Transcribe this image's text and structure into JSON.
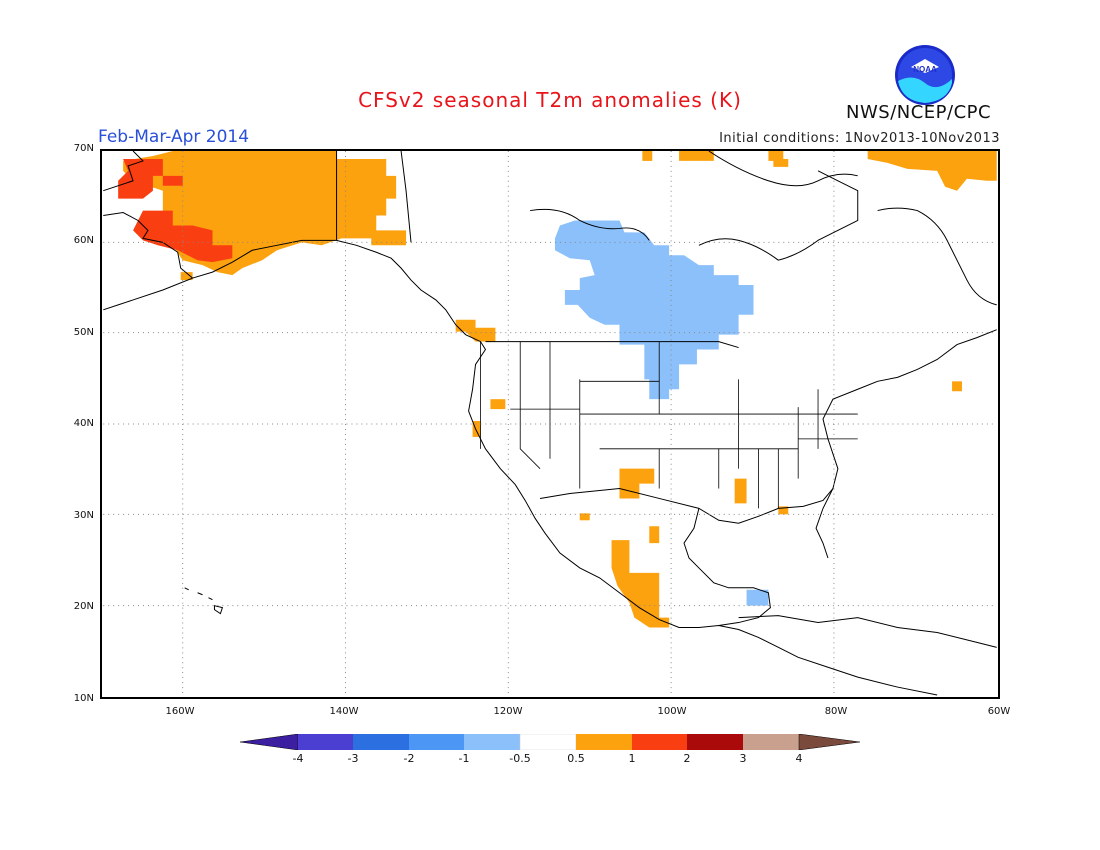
{
  "title": "CFSv2 seasonal T2m anomalies (K)",
  "period": "Feb-Mar-Apr 2014",
  "initial_conditions": "Initial conditions: 1Nov2013-10Nov2013",
  "agency": "NWS/NCEP/CPC",
  "logo": {
    "icon": "noaa-logo-icon",
    "text": "NOAA"
  },
  "map": {
    "lat_labels": [
      "70N",
      "60N",
      "50N",
      "40N",
      "30N",
      "20N",
      "10N"
    ],
    "lon_labels": [
      "160W",
      "140W",
      "120W",
      "100W",
      "80W",
      "60W"
    ],
    "lat_range": [
      10,
      70
    ],
    "lon_range": [
      -170,
      -60
    ],
    "grid": "dotted"
  },
  "colorbar": {
    "labels": [
      "-4",
      "-3",
      "-2",
      "-1",
      "-0.5",
      "0.5",
      "1",
      "2",
      "3",
      "4"
    ],
    "colors": [
      "#3c1ea0",
      "#4a3fd1",
      "#2b6fe0",
      "#4c97f5",
      "#8cc0fb",
      "#ffffff",
      "#fca20f",
      "#f93e12",
      "#aa0a0a",
      "#c9a08e",
      "#7a4a3c"
    ]
  },
  "anomaly_regions": [
    {
      "name": "Alaska warm",
      "category": "0.5 to 1",
      "color": "#fca20f"
    },
    {
      "name": "Western Alaska warm",
      "category": "1 to 2",
      "color": "#f93e12"
    },
    {
      "name": "Central Canada / Northern Plains cool",
      "category": "-1 to -0.5",
      "color": "#8cc0fb"
    },
    {
      "name": "Mexico warm",
      "category": "0.5 to 1",
      "color": "#fca20f"
    },
    {
      "name": "Yucatan cool",
      "category": "-1 to -0.5",
      "color": "#8cc0fb"
    }
  ]
}
